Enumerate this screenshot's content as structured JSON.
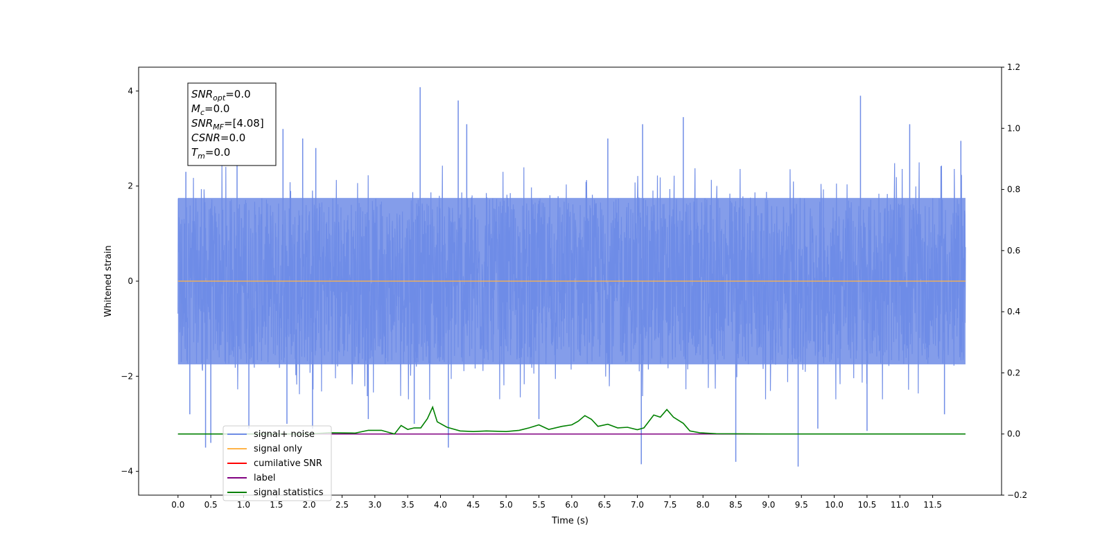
{
  "chart_data": {
    "type": "line",
    "xlabel": "Time (s)",
    "ylabel": "Whitened strain",
    "xlim": [
      -0.6,
      12.55
    ],
    "ylim": [
      -4.5,
      4.5
    ],
    "y2lim": [
      -0.2,
      1.2
    ],
    "x_ticks": [
      "0.0",
      "0.5",
      "1.0",
      "1.5",
      "2.0",
      "2.5",
      "3.0",
      "3.5",
      "4.0",
      "4.5",
      "5.0",
      "5.5",
      "6.0",
      "6.5",
      "7.0",
      "7.5",
      "8.0",
      "8.5",
      "9.0",
      "9.5",
      "10.0",
      "10.5",
      "11.0",
      "11.5"
    ],
    "y_ticks": [
      "4",
      "2",
      "0",
      "−2",
      "−4"
    ],
    "y2_ticks": [
      "1.2",
      "1.0",
      "0.8",
      "0.6",
      "0.4",
      "0.2",
      "0.0",
      "−0.2"
    ],
    "grid": false,
    "legend_position": "lower-left",
    "colors": {
      "signal_noise": "#6f8ce6",
      "signal_only": "#ffb347",
      "cumulative_snr": "#ff0000",
      "label": "#800080",
      "signal_statistics": "#008000"
    },
    "annotation": {
      "lines": [
        {
          "sym": "SNR",
          "sub": "opt",
          "val": "=0.0"
        },
        {
          "sym": "M",
          "sub": "c",
          "val": "=0.0"
        },
        {
          "sym": "SNR",
          "sub": "MF",
          "val": "=[4.08]"
        },
        {
          "sym": "CSNR",
          "sub": "",
          "val": "=0.0"
        },
        {
          "sym": "T",
          "sub": "m",
          "val": "=0.0"
        }
      ]
    },
    "series": [
      {
        "name": "signal+ noise",
        "x_range": [
          0.0,
          12.0
        ],
        "band_y": [
          -1.75,
          1.75
        ],
        "spikes": [
          {
            "x": 0.05,
            "y": -1.7
          },
          {
            "x": 0.12,
            "y": 2.3
          },
          {
            "x": 0.18,
            "y": -2.8
          },
          {
            "x": 0.42,
            "y": -3.5
          },
          {
            "x": 0.5,
            "y": -3.4
          },
          {
            "x": 0.9,
            "y": 2.6
          },
          {
            "x": 1.08,
            "y": -3.1
          },
          {
            "x": 1.6,
            "y": 3.2
          },
          {
            "x": 1.66,
            "y": -3.0
          },
          {
            "x": 1.9,
            "y": 3.0
          },
          {
            "x": 2.05,
            "y": -3.1
          },
          {
            "x": 2.1,
            "y": 2.8
          },
          {
            "x": 2.9,
            "y": -2.9
          },
          {
            "x": 3.6,
            "y": -3.0
          },
          {
            "x": 3.69,
            "y": 4.08
          },
          {
            "x": 4.12,
            "y": -3.5
          },
          {
            "x": 4.27,
            "y": 3.8
          },
          {
            "x": 4.4,
            "y": 3.3
          },
          {
            "x": 5.5,
            "y": -2.9
          },
          {
            "x": 6.55,
            "y": 3.0
          },
          {
            "x": 7.06,
            "y": -3.85
          },
          {
            "x": 7.08,
            "y": 3.3
          },
          {
            "x": 7.7,
            "y": 3.45
          },
          {
            "x": 8.5,
            "y": -3.8
          },
          {
            "x": 9.45,
            "y": -3.9
          },
          {
            "x": 9.75,
            "y": -3.1
          },
          {
            "x": 10.4,
            "y": 3.9
          },
          {
            "x": 10.5,
            "y": -3.15
          },
          {
            "x": 11.15,
            "y": 3.3
          },
          {
            "x": 11.68,
            "y": -2.8
          },
          {
            "x": 11.93,
            "y": 2.95
          }
        ]
      },
      {
        "name": "signal only",
        "x_range": [
          0.0,
          12.0
        ],
        "y": 0.0
      },
      {
        "name": "cumilative SNR",
        "points": []
      },
      {
        "name": "label",
        "axis": "right",
        "x_range": [
          0.0,
          12.0
        ],
        "y": 0.0
      },
      {
        "name": "signal statistics",
        "axis": "right",
        "points": [
          [
            0.0,
            0.0
          ],
          [
            2.0,
            0.0
          ],
          [
            2.3,
            0.004
          ],
          [
            2.7,
            0.003
          ],
          [
            2.9,
            0.012
          ],
          [
            3.1,
            0.012
          ],
          [
            3.2,
            0.006
          ],
          [
            3.3,
            0.0
          ],
          [
            3.4,
            0.028
          ],
          [
            3.5,
            0.015
          ],
          [
            3.6,
            0.02
          ],
          [
            3.7,
            0.02
          ],
          [
            3.8,
            0.05
          ],
          [
            3.88,
            0.088
          ],
          [
            3.95,
            0.04
          ],
          [
            4.1,
            0.022
          ],
          [
            4.3,
            0.01
          ],
          [
            4.5,
            0.008
          ],
          [
            4.7,
            0.01
          ],
          [
            5.0,
            0.008
          ],
          [
            5.2,
            0.012
          ],
          [
            5.35,
            0.02
          ],
          [
            5.5,
            0.03
          ],
          [
            5.65,
            0.015
          ],
          [
            5.85,
            0.025
          ],
          [
            6.0,
            0.03
          ],
          [
            6.1,
            0.042
          ],
          [
            6.2,
            0.06
          ],
          [
            6.3,
            0.048
          ],
          [
            6.4,
            0.025
          ],
          [
            6.55,
            0.032
          ],
          [
            6.7,
            0.02
          ],
          [
            6.85,
            0.022
          ],
          [
            7.0,
            0.014
          ],
          [
            7.1,
            0.02
          ],
          [
            7.25,
            0.062
          ],
          [
            7.35,
            0.055
          ],
          [
            7.45,
            0.08
          ],
          [
            7.55,
            0.055
          ],
          [
            7.7,
            0.035
          ],
          [
            7.8,
            0.01
          ],
          [
            7.95,
            0.004
          ],
          [
            8.2,
            0.001
          ],
          [
            9.0,
            0.0
          ],
          [
            12.0,
            0.0
          ]
        ]
      }
    ]
  }
}
